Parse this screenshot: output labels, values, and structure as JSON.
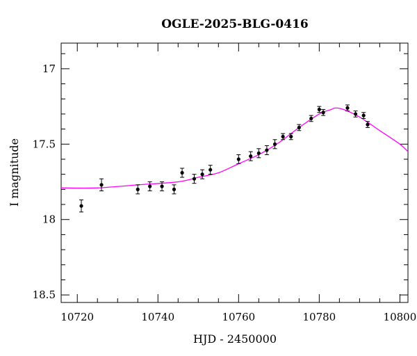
{
  "chart_data": {
    "type": "scatter",
    "title": "OGLE-2025-BLG-0416",
    "xlabel": "HJD - 2450000",
    "ylabel": "I magnitude",
    "xlim": [
      10716,
      10802
    ],
    "ylim": [
      18.55,
      16.83
    ],
    "y_inverted": true,
    "x_ticks": [
      10720,
      10740,
      10760,
      10780,
      10800
    ],
    "y_ticks": [
      17,
      17.5,
      18,
      18.5
    ],
    "x_tick_labels": [
      "10720",
      "10740",
      "10760",
      "10780",
      "10800"
    ],
    "y_tick_labels": [
      "17",
      "17.5",
      "18",
      "18.5"
    ],
    "grid": false,
    "series": [
      {
        "type": "scatter",
        "color": "#000000",
        "x": [
          10721,
          10726,
          10735,
          10738,
          10741,
          10744,
          10746,
          10749,
          10751,
          10753,
          10760,
          10763,
          10765,
          10767,
          10769,
          10771,
          10773,
          10775,
          10778,
          10780,
          10781,
          10787,
          10789,
          10791,
          10792
        ],
        "y": [
          17.91,
          17.77,
          17.8,
          17.78,
          17.78,
          17.8,
          17.69,
          17.73,
          17.7,
          17.67,
          17.6,
          17.58,
          17.56,
          17.54,
          17.5,
          17.45,
          17.45,
          17.39,
          17.33,
          17.27,
          17.29,
          17.26,
          17.3,
          17.31,
          17.37
        ],
        "err": [
          0.04,
          0.04,
          0.03,
          0.03,
          0.03,
          0.03,
          0.03,
          0.03,
          0.03,
          0.03,
          0.03,
          0.03,
          0.03,
          0.03,
          0.03,
          0.02,
          0.02,
          0.02,
          0.02,
          0.02,
          0.02,
          0.02,
          0.02,
          0.02,
          0.02
        ]
      },
      {
        "type": "line",
        "color": "#ff00ff",
        "x": [
          10716,
          10725,
          10735,
          10745,
          10750,
          10755,
          10760,
          10765,
          10770,
          10775,
          10780,
          10783,
          10784,
          10786,
          10790,
          10795,
          10800,
          10802
        ],
        "y": [
          17.79,
          17.79,
          17.77,
          17.75,
          17.72,
          17.69,
          17.63,
          17.57,
          17.49,
          17.39,
          17.3,
          17.27,
          17.26,
          17.27,
          17.32,
          17.41,
          17.5,
          17.55
        ]
      }
    ]
  }
}
